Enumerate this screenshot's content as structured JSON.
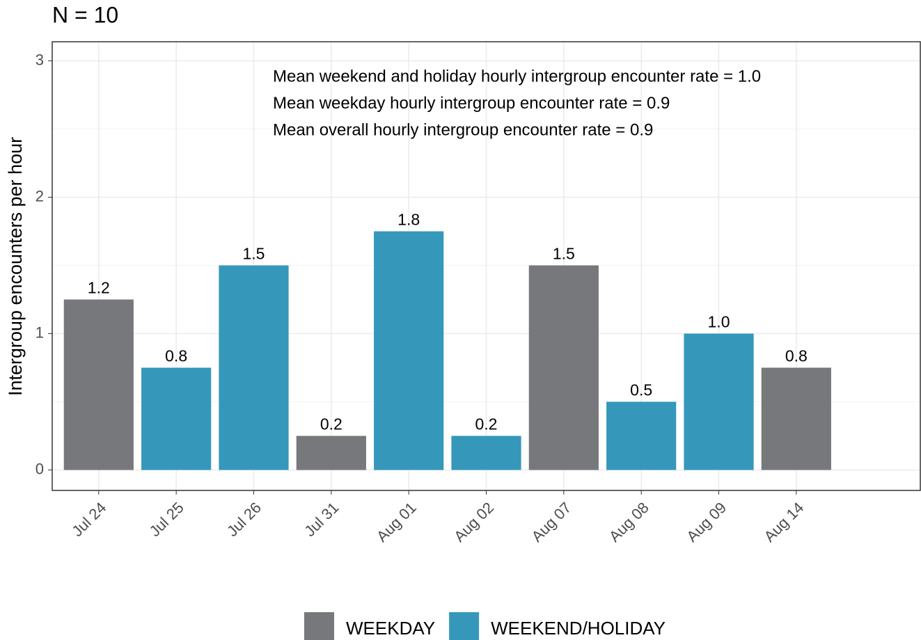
{
  "chart_data": {
    "type": "bar",
    "title": "N = 10",
    "ylabel": "Intergroup encounters per hour",
    "annotations": [
      "Mean weekend and holiday hourly intergroup encounter rate = 1.0",
      "Mean weekday hourly intergroup encounter rate = 0.9",
      "Mean overall hourly intergroup encounter rate = 0.9"
    ],
    "categories": [
      "Jul 24",
      "Jul 25",
      "Jul 26",
      "Jul 31",
      "Aug 01",
      "Aug 02",
      "Aug 07",
      "Aug 08",
      "Aug 09",
      "Aug 14"
    ],
    "series": [
      {
        "name": "WEEKDAY",
        "color": "#77787b",
        "values": [
          1.25,
          null,
          null,
          0.25,
          null,
          null,
          1.5,
          null,
          null,
          0.75
        ],
        "value_labels": [
          "1.2",
          null,
          null,
          "0.2",
          null,
          null,
          "1.5",
          null,
          null,
          "0.8"
        ]
      },
      {
        "name": "WEEKEND/HOLIDAY",
        "color": "#3598ba",
        "values": [
          null,
          0.75,
          1.5,
          null,
          1.75,
          0.25,
          null,
          0.5,
          1.0,
          null
        ],
        "value_labels": [
          null,
          "0.8",
          "1.5",
          null,
          "1.8",
          "0.2",
          null,
          "0.5",
          "1.0",
          null
        ]
      }
    ],
    "ylim": [
      -0.15,
      3.14
    ],
    "yticks": [
      0,
      1,
      2,
      3
    ],
    "grid": true,
    "legend": "bottom"
  }
}
